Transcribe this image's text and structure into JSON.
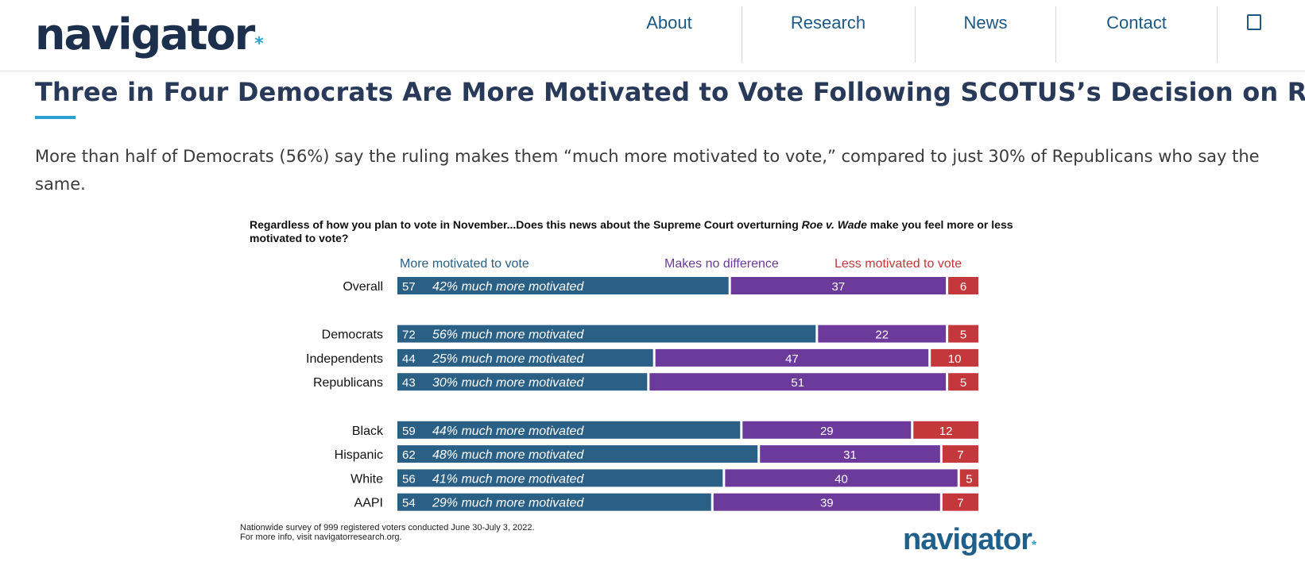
{
  "header": {
    "logo": "navigator",
    "logo_dot": "*",
    "nav": [
      {
        "label": "About"
      },
      {
        "label": "Research"
      },
      {
        "label": "News"
      },
      {
        "label": "Contact"
      }
    ],
    "search_icon": "search-icon"
  },
  "article": {
    "title": "Three in Four Democrats Are More Motivated to Vote Following SCOTUS’s Decision on Roe",
    "lead": "More than half of Democrats (56%) say the ruling makes them “much more motivated to vote,” compared to just 30% of Republicans who say the same."
  },
  "chart_data": {
    "type": "bar",
    "orientation": "horizontal",
    "stacked": true,
    "question_part1": "Regardless of how you plan to vote in November...Does this news about the Supreme Court overturning ",
    "question_italic": "Roe v. Wade",
    "question_part2": " make you feel more or less",
    "question_line2": "motivated to vote?",
    "legend": [
      "More motivated to vote",
      "Makes no difference",
      "Less motivated to vote"
    ],
    "colors": {
      "more": "#2a5f86",
      "none": "#6b3a9b",
      "less": "#c4373a"
    },
    "xlim": [
      0,
      100
    ],
    "groups": [
      [
        {
          "label": "Overall",
          "more": 57,
          "note": "42% much more motivated",
          "none": 37,
          "less": 6
        }
      ],
      [
        {
          "label": "Democrats",
          "more": 72,
          "note": "56% much more motivated",
          "none": 22,
          "less": 5
        },
        {
          "label": "Independents",
          "more": 44,
          "note": "25% much more motivated",
          "none": 47,
          "less": 10
        },
        {
          "label": "Republicans",
          "more": 43,
          "note": "30% much more motivated",
          "none": 51,
          "less": 5
        }
      ],
      [
        {
          "label": "Black",
          "more": 59,
          "note": "44% much more motivated",
          "none": 29,
          "less": 12
        },
        {
          "label": "Hispanic",
          "more": 62,
          "note": "48% much more motivated",
          "none": 31,
          "less": 7
        },
        {
          "label": "White",
          "more": 56,
          "note": "41% much more motivated",
          "none": 40,
          "less": 5
        },
        {
          "label": "AAPI",
          "more": 54,
          "note": "29% much more motivated",
          "none": 39,
          "less": 7
        }
      ]
    ],
    "footnote_line1": "Nationwide survey of 999 registered voters conducted June 30-July 3, 2022.",
    "footnote_line2": "For more info, visit navigatorresearch.org.",
    "brand": "navigator",
    "brand_dot": "*"
  }
}
